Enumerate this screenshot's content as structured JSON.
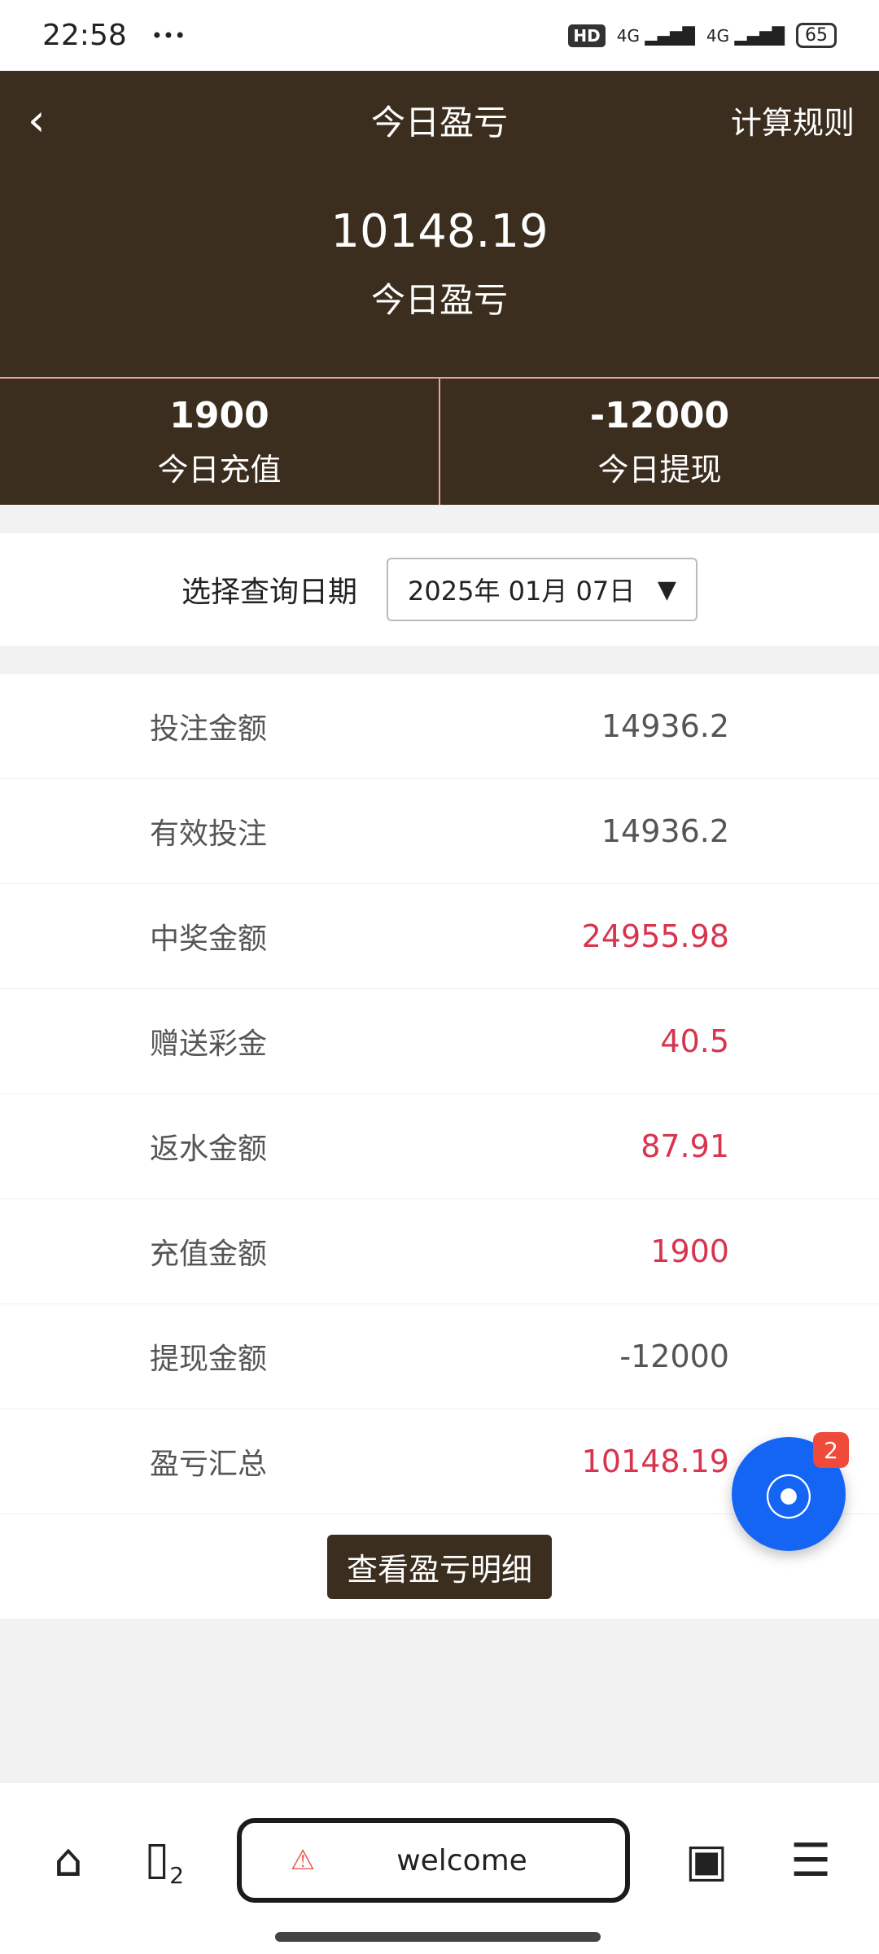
{
  "status_bar": {
    "time": "22:58",
    "more": "•••",
    "network": "4G",
    "battery": "65",
    "hd": "HD"
  },
  "header": {
    "back": "‹",
    "title": "今日盈亏",
    "rules": "计算规则",
    "amount": "10148.19",
    "amount_label": "今日盈亏"
  },
  "stats": [
    {
      "value": "1900",
      "label": "今日充值"
    },
    {
      "value": "-12000",
      "label": "今日提现"
    }
  ],
  "date_filter": {
    "label": "选择查询日期",
    "value": "2025年 01月 07日"
  },
  "rows": [
    {
      "label": "投注金额",
      "value": "14936.2",
      "highlight": false
    },
    {
      "label": "有效投注",
      "value": "14936.2",
      "highlight": false
    },
    {
      "label": "中奖金额",
      "value": "24955.98",
      "highlight": true
    },
    {
      "label": "赠送彩金",
      "value": "40.5",
      "highlight": true
    },
    {
      "label": "返水金额",
      "value": "87.91",
      "highlight": true
    },
    {
      "label": "充值金额",
      "value": "1900",
      "highlight": true
    },
    {
      "label": "提现金额",
      "value": "-12000",
      "highlight": false
    },
    {
      "label": "盈亏汇总",
      "value": "10148.19",
      "highlight": true
    }
  ],
  "detail_button": "查看盈亏明细",
  "fab": {
    "badge": "2",
    "icon": "broadcast-icon"
  },
  "browser_bar": {
    "url": "welcome",
    "tabs_count": "2"
  },
  "colors": {
    "brand": "#3b2e1f",
    "highlight": "#d9344e",
    "fab": "#1565f5"
  }
}
